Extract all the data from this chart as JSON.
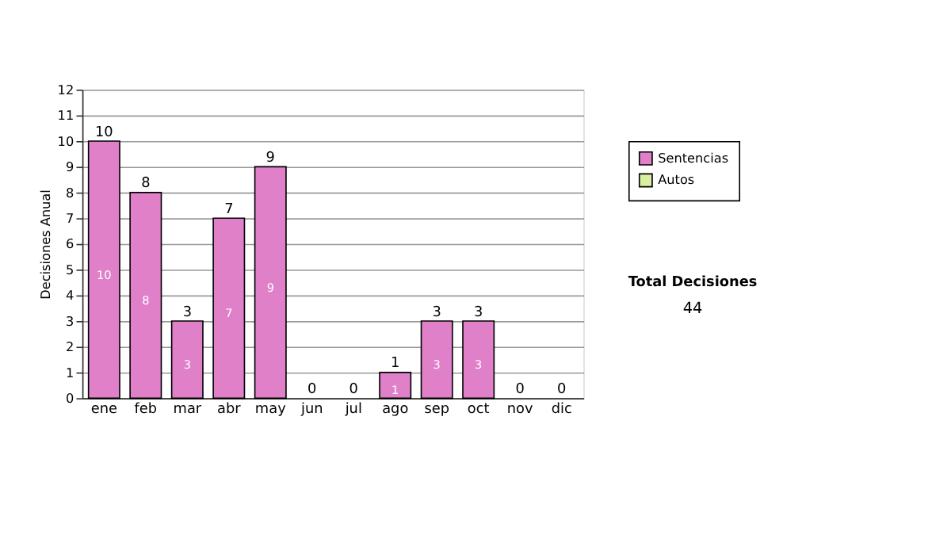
{
  "chart_data": {
    "type": "bar",
    "stacked": true,
    "ylabel": "Decisiones Anual",
    "categories": [
      "ene",
      "feb",
      "mar",
      "abr",
      "may",
      "jun",
      "jul",
      "ago",
      "sep",
      "oct",
      "nov",
      "dic"
    ],
    "series": [
      {
        "name": "Sentencias",
        "color": "#e080c8",
        "values": [
          10,
          8,
          3,
          7,
          9,
          0,
          0,
          1,
          3,
          3,
          0,
          0
        ],
        "value_labels": [
          "10",
          "8",
          "3",
          "7",
          "9",
          null,
          null,
          "1",
          "3",
          "3",
          null,
          null
        ]
      },
      {
        "name": "Autos",
        "color": "#d8f0a0",
        "values": [
          0,
          0,
          0,
          0,
          0,
          0,
          0,
          0,
          0,
          0,
          0,
          0
        ]
      }
    ],
    "totals": [
      "10",
      "8",
      "3",
      "7",
      "9",
      "0",
      "0",
      "1",
      "3",
      "3",
      "0",
      "0"
    ],
    "ylim": [
      0,
      12
    ],
    "yticks": [
      0,
      1,
      2,
      3,
      4,
      5,
      6,
      7,
      8,
      9,
      10,
      11,
      12
    ],
    "grid": "y",
    "legend": "right",
    "annotations": [
      "Total Decisiones",
      "44"
    ]
  }
}
